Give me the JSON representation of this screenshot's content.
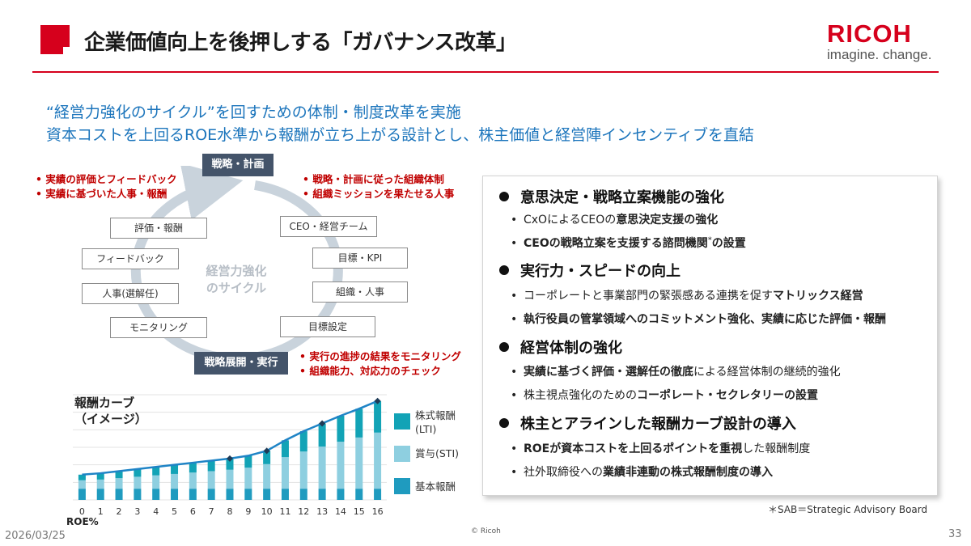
{
  "header": {
    "title": "企業価値向上を後押しする「ガバナンス改革」",
    "brand_name": "RICOH",
    "brand_tagline": "imagine. change."
  },
  "subheadline": {
    "line1": "“経営力強化のサイクル”を回すための体制・制度改革を実施",
    "line2": "資本コストを上回るROE水準から報酬が立ち上がる設計とし、株主価値と経営陣インセンティブを直結"
  },
  "cycle": {
    "top_label": "戦略・計画",
    "bottom_label": "戦略展開・実行",
    "center_label": [
      "経営力強化",
      "のサイクル"
    ],
    "left_boxes": [
      "評価・報酬",
      "フィードバック",
      "人事(選解任)",
      "モニタリング"
    ],
    "right_boxes": [
      "CEO・経営チーム",
      "目標・KPI",
      "組織・人事",
      "目標設定"
    ],
    "notes_top_left": [
      "実績の評価とフィードバック",
      "実績に基づいた人事・報酬"
    ],
    "notes_top_right": [
      "戦略・計画に従った組織体制",
      "組織ミッションを果たせる人事"
    ],
    "notes_bottom_right": [
      "実行の進捗の結果をモニタリング",
      "組織能力、対応力のチェック"
    ],
    "ring_color": "#c9d3dc"
  },
  "chart_data": {
    "type": "bar",
    "title": "報酬カーブ（イメージ）",
    "title_lines": [
      "報酬カーブ",
      "（イメージ）"
    ],
    "xlabel": "ROE%",
    "ylabel": "",
    "categories": [
      "0",
      "1",
      "2",
      "3",
      "4",
      "5",
      "6",
      "7",
      "8",
      "9",
      "10",
      "11",
      "12",
      "13",
      "14",
      "15",
      "16"
    ],
    "stacked": true,
    "series": [
      {
        "name": "基本報酬",
        "color": "#1f9bbf",
        "values": [
          16,
          16,
          16,
          16,
          16,
          16,
          16,
          16,
          16,
          16,
          16,
          16,
          16,
          16,
          16,
          16,
          16
        ]
      },
      {
        "name": "賞与(STI)",
        "color": "#8ecfe0",
        "values": [
          12,
          13,
          15,
          17,
          19,
          21,
          23,
          25,
          27,
          30,
          35,
          45,
          53,
          60,
          67,
          73,
          80
        ]
      },
      {
        "name": "株式報酬(LTI)",
        "color": "#12a3b6",
        "values": [
          8,
          9,
          10,
          11,
          12,
          13,
          14,
          15,
          16,
          17,
          19,
          24,
          29,
          33,
          37,
          41,
          45
        ]
      }
    ],
    "legend_order": [
      "株式報酬(LTI)",
      "賞与(STI)",
      "基本報酬"
    ],
    "line_color": "#1f84c6",
    "ylim": [
      0,
      150
    ],
    "legend_position": "right"
  },
  "panel": {
    "sections": [
      {
        "heading": "意思決定・戦略立案機能の強化",
        "items": [
          [
            {
              "t": "CxOによるCEOの",
              "b": false
            },
            {
              "t": "意思決定支援の強化",
              "b": true
            }
          ],
          [
            {
              "t": "CEOの戦略立案を支援する諮問機関",
              "b": true
            },
            {
              "t": "*",
              "b": false
            },
            {
              "t": "の設置",
              "b": true
            }
          ]
        ]
      },
      {
        "heading": "実行力・スピードの向上",
        "items": [
          [
            {
              "t": "コーポレートと事業部門の緊張感ある連携を促す",
              "b": false
            },
            {
              "t": "マトリックス経営",
              "b": true
            }
          ],
          [
            {
              "t": "執行役員の管掌領域へのコミットメント強化、実績に応じた評価・報酬",
              "b": true
            }
          ]
        ]
      },
      {
        "heading": "経営体制の強化",
        "items": [
          [
            {
              "t": "実績に基づく評価・選解任の徹底",
              "b": true
            },
            {
              "t": "による経営体制の継続的強化",
              "b": false
            }
          ],
          [
            {
              "t": "株主視点強化のための",
              "b": false
            },
            {
              "t": "コーポレート・セクレタリーの設置",
              "b": true
            }
          ]
        ]
      },
      {
        "heading": "株主とアラインした報酬カーブ設計の導入",
        "items": [
          [
            {
              "t": "ROEが資本コストを上回るポイントを重視",
              "b": true
            },
            {
              "t": "した報酬制度",
              "b": false
            }
          ],
          [
            {
              "t": "社外取締役への",
              "b": false
            },
            {
              "t": "業績非連動の株式報酬制度の導入",
              "b": true
            }
          ]
        ]
      }
    ]
  },
  "footer": {
    "footnote": "＊SAB＝Strategic Advisory Board",
    "copyright": "© Ricoh",
    "date": "2026/03/25",
    "page_number": "33"
  },
  "colors": {
    "accent": "#d6001c",
    "blue_text": "#1c75bc",
    "dark_box": "#44546a",
    "note_red": "#c00000"
  }
}
